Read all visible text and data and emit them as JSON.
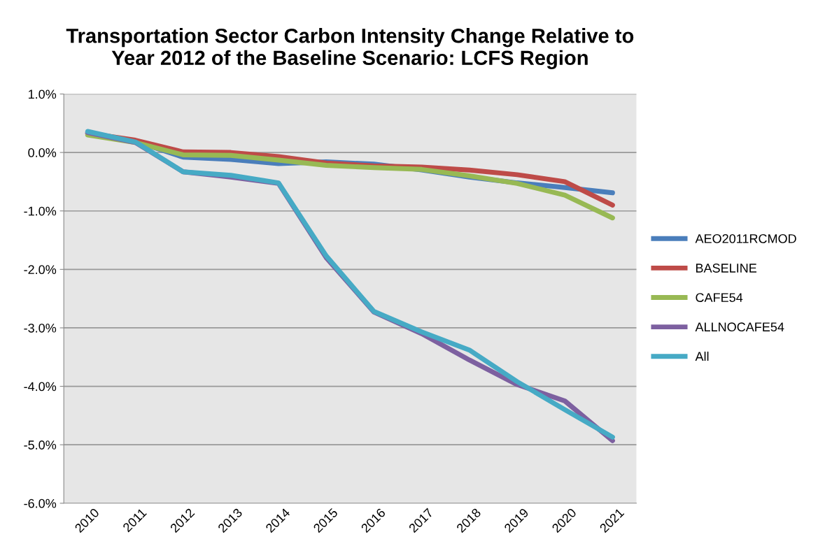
{
  "chart_data": {
    "type": "line",
    "title": "Transportation Sector Carbon Intensity Change Relative to\nYear 2012 of the Baseline Scenario: LCFS Region",
    "categories": [
      "2010",
      "2011",
      "2012",
      "2013",
      "2014",
      "2015",
      "2016",
      "2017",
      "2018",
      "2019",
      "2020",
      "2021"
    ],
    "series": [
      {
        "name": "AEO2011RCMOD",
        "color": "#4a7ebb",
        "values": [
          0.33,
          0.19,
          -0.08,
          -0.12,
          -0.19,
          -0.16,
          -0.2,
          -0.3,
          -0.42,
          -0.52,
          -0.6,
          -0.69
        ]
      },
      {
        "name": "BASELINE",
        "color": "#be4b48",
        "values": [
          0.33,
          0.21,
          0.01,
          0.0,
          -0.07,
          -0.18,
          -0.23,
          -0.25,
          -0.3,
          -0.38,
          -0.5,
          -0.9
        ]
      },
      {
        "name": "CAFE54",
        "color": "#98b954",
        "values": [
          0.3,
          0.17,
          -0.04,
          -0.05,
          -0.13,
          -0.22,
          -0.26,
          -0.29,
          -0.4,
          -0.53,
          -0.73,
          -1.12
        ]
      },
      {
        "name": "ALLNOCAFE54",
        "color": "#7d60a0",
        "values": [
          0.34,
          0.17,
          -0.33,
          -0.42,
          -0.53,
          -1.8,
          -2.73,
          -3.1,
          -3.55,
          -3.97,
          -4.25,
          -4.93
        ]
      },
      {
        "name": "All",
        "color": "#46aac5",
        "values": [
          0.36,
          0.18,
          -0.33,
          -0.39,
          -0.52,
          -1.77,
          -2.72,
          -3.07,
          -3.38,
          -3.92,
          -4.4,
          -4.87
        ]
      }
    ],
    "ylim": [
      -6,
      1
    ],
    "yticks": [
      {
        "value": -6,
        "label": "-6.0%"
      },
      {
        "value": -5,
        "label": "-5.0%"
      },
      {
        "value": -4,
        "label": "-4.0%"
      },
      {
        "value": -3,
        "label": "-3.0%"
      },
      {
        "value": -2,
        "label": "-2.0%"
      },
      {
        "value": -1,
        "label": "-1.0%"
      },
      {
        "value": 0,
        "label": "0.0%"
      },
      {
        "value": 1,
        "label": "1.0%"
      }
    ],
    "grid": "y",
    "legend": "right",
    "marker": "none",
    "line_style": "solid"
  }
}
